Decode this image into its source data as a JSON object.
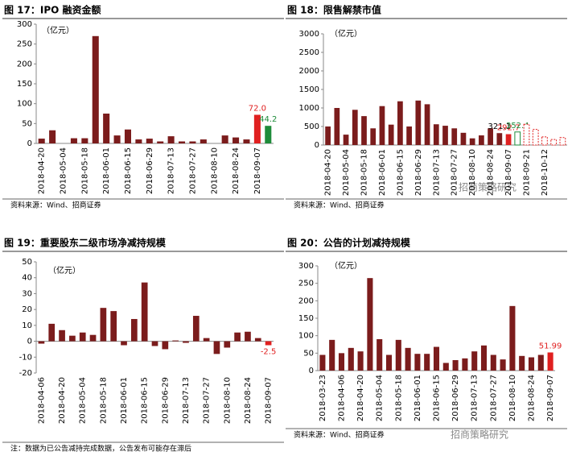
{
  "chart_data": [
    {
      "type": "bar",
      "title": "图 17：IPO 融资金额",
      "unit_label": "（亿元）",
      "source": "资料来源：Wind、招商证券",
      "categories": [
        "2018-04-20",
        null,
        "2018-05-04",
        null,
        "2018-05-18",
        null,
        "2018-06-01",
        null,
        "2018-06-15",
        null,
        "2018-06-29",
        null,
        "2018-07-13",
        null,
        "2018-07-27",
        null,
        "2018-08-10",
        null,
        "2018-08-24",
        null,
        "2018-09-07",
        null
      ],
      "values": [
        12,
        33,
        0,
        13,
        13,
        270,
        75,
        20,
        35,
        10,
        12,
        5,
        18,
        5,
        5,
        10,
        0,
        20,
        15,
        10,
        72.0,
        44.2
      ],
      "value_labels": [
        null,
        null,
        null,
        null,
        null,
        null,
        null,
        null,
        null,
        null,
        null,
        null,
        null,
        null,
        null,
        null,
        null,
        null,
        null,
        null,
        "72.0",
        "44.2"
      ],
      "colors": [
        "#7b1c1c",
        "#7b1c1c",
        "#7b1c1c",
        "#7b1c1c",
        "#7b1c1c",
        "#7b1c1c",
        "#7b1c1c",
        "#7b1c1c",
        "#7b1c1c",
        "#7b1c1c",
        "#7b1c1c",
        "#7b1c1c",
        "#7b1c1c",
        "#7b1c1c",
        "#7b1c1c",
        "#7b1c1c",
        "#7b1c1c",
        "#7b1c1c",
        "#7b1c1c",
        "#7b1c1c",
        "#e02020",
        "#1e8c3a"
      ],
      "ylim": [
        0,
        300
      ],
      "yticks": [
        0,
        50,
        100,
        150,
        200,
        250,
        300
      ]
    },
    {
      "type": "bar",
      "title": "图 18：限售解禁市值",
      "unit_label": "（亿元）",
      "source": "资料来源：Wind、招商证券",
      "categories": [
        "2018-04-20",
        null,
        "2018-05-04",
        null,
        "2018-05-18",
        null,
        "2018-06-01",
        null,
        "2018-06-15",
        null,
        "2018-06-29",
        null,
        "2018-07-13",
        null,
        "2018-07-27",
        null,
        "2018-08-10",
        null,
        "2018-08-24",
        null,
        "2018-09-07",
        null,
        "2018-09-21",
        null,
        "2018-10-12",
        null,
        null
      ],
      "values": [
        500,
        1000,
        280,
        950,
        780,
        450,
        1050,
        550,
        1180,
        500,
        1200,
        1100,
        560,
        520,
        450,
        330,
        180,
        260,
        450,
        321.1,
        292.7,
        352.4,
        560,
        420,
        220,
        150,
        200
      ],
      "value_labels": [
        null,
        null,
        null,
        null,
        null,
        null,
        null,
        null,
        null,
        null,
        null,
        null,
        null,
        null,
        null,
        null,
        null,
        null,
        null,
        "321.1",
        "292.7",
        "352.4",
        null,
        null,
        null,
        null,
        null
      ],
      "colors": [
        "#7b1c1c",
        "#7b1c1c",
        "#7b1c1c",
        "#7b1c1c",
        "#7b1c1c",
        "#7b1c1c",
        "#7b1c1c",
        "#7b1c1c",
        "#7b1c1c",
        "#7b1c1c",
        "#7b1c1c",
        "#7b1c1c",
        "#7b1c1c",
        "#7b1c1c",
        "#7b1c1c",
        "#7b1c1c",
        "#7b1c1c",
        "#7b1c1c",
        "#7b1c1c",
        "#7b1c1c",
        "#e02020",
        "#1e8c3a",
        "#e02020",
        "#e02020",
        "#e02020",
        "#e02020",
        "#e02020"
      ],
      "fill_styles": [
        "solid",
        "solid",
        "solid",
        "solid",
        "solid",
        "solid",
        "solid",
        "solid",
        "solid",
        "solid",
        "solid",
        "solid",
        "solid",
        "solid",
        "solid",
        "solid",
        "solid",
        "solid",
        "solid",
        "solid",
        "solid",
        "outline",
        "dashed",
        "dashed",
        "dashed",
        "dashed",
        "dashed"
      ],
      "ylim": [
        0,
        3000
      ],
      "yticks": [
        0,
        500,
        1000,
        1500,
        2000,
        2500,
        3000
      ]
    },
    {
      "type": "bar",
      "title": "图 19：重要股东二级市场净减持规模",
      "unit_label": "（亿元）",
      "source": "注：数据为已公告减持完成数据，公告发布可能存在滞后",
      "categories": [
        "2018-04-06",
        null,
        "2018-04-20",
        null,
        "2018-05-04",
        null,
        "2018-05-18",
        null,
        "2018-06-01",
        null,
        "2018-06-15",
        null,
        "2018-06-29",
        null,
        "2018-07-13",
        null,
        "2018-07-27",
        null,
        "2018-08-10",
        null,
        "2018-08-24",
        null,
        "2018-09-07"
      ],
      "values": [
        -1.5,
        11,
        7,
        3.5,
        5.5,
        4,
        21,
        19,
        -2.5,
        14,
        37,
        -3,
        -5,
        0.5,
        -1,
        16,
        2,
        -8,
        -4,
        5.5,
        6,
        2,
        -2.5
      ],
      "value_labels": [
        null,
        null,
        null,
        null,
        null,
        null,
        null,
        null,
        null,
        null,
        null,
        null,
        null,
        null,
        null,
        null,
        null,
        null,
        null,
        null,
        null,
        null,
        "-2.5"
      ],
      "colors": [
        "#7b1c1c",
        "#7b1c1c",
        "#7b1c1c",
        "#7b1c1c",
        "#7b1c1c",
        "#7b1c1c",
        "#7b1c1c",
        "#7b1c1c",
        "#7b1c1c",
        "#7b1c1c",
        "#7b1c1c",
        "#7b1c1c",
        "#7b1c1c",
        "#7b1c1c",
        "#7b1c1c",
        "#7b1c1c",
        "#7b1c1c",
        "#7b1c1c",
        "#7b1c1c",
        "#7b1c1c",
        "#7b1c1c",
        "#7b1c1c",
        "#e02020"
      ],
      "ylim": [
        -20,
        50
      ],
      "yticks": [
        -20,
        -10,
        0,
        10,
        20,
        30,
        40,
        50
      ]
    },
    {
      "type": "bar",
      "title": "图 20：公告的计划减持规模",
      "unit_label": "（亿元）",
      "source": "资料来源：Wind、招商证券",
      "categories": [
        "2018-03-23",
        null,
        "2018-04-06",
        null,
        "2018-04-20",
        null,
        "2018-05-04",
        null,
        "2018-05-18",
        null,
        "2018-06-01",
        null,
        "2018-06-15",
        null,
        "2018-06-29",
        null,
        "2018-07-13",
        null,
        "2018-07-27",
        null,
        "2018-08-10",
        null,
        "2018-08-24",
        null,
        "2018-09-07"
      ],
      "values": [
        45,
        88,
        50,
        65,
        55,
        265,
        90,
        45,
        88,
        65,
        48,
        48,
        68,
        22,
        30,
        35,
        55,
        72,
        45,
        32,
        185,
        42,
        38,
        45,
        51.99
      ],
      "value_labels": [
        null,
        null,
        null,
        null,
        null,
        null,
        null,
        null,
        null,
        null,
        null,
        null,
        null,
        null,
        null,
        null,
        null,
        null,
        null,
        null,
        null,
        null,
        null,
        null,
        "51.99"
      ],
      "colors": [
        "#7b1c1c",
        "#7b1c1c",
        "#7b1c1c",
        "#7b1c1c",
        "#7b1c1c",
        "#7b1c1c",
        "#7b1c1c",
        "#7b1c1c",
        "#7b1c1c",
        "#7b1c1c",
        "#7b1c1c",
        "#7b1c1c",
        "#7b1c1c",
        "#7b1c1c",
        "#7b1c1c",
        "#7b1c1c",
        "#7b1c1c",
        "#7b1c1c",
        "#7b1c1c",
        "#7b1c1c",
        "#7b1c1c",
        "#7b1c1c",
        "#7b1c1c",
        "#7b1c1c",
        "#e02020"
      ],
      "ylim": [
        0,
        300
      ],
      "yticks": [
        0,
        50,
        100,
        150,
        200,
        250,
        300
      ]
    }
  ],
  "watermark": "招商策略研究"
}
